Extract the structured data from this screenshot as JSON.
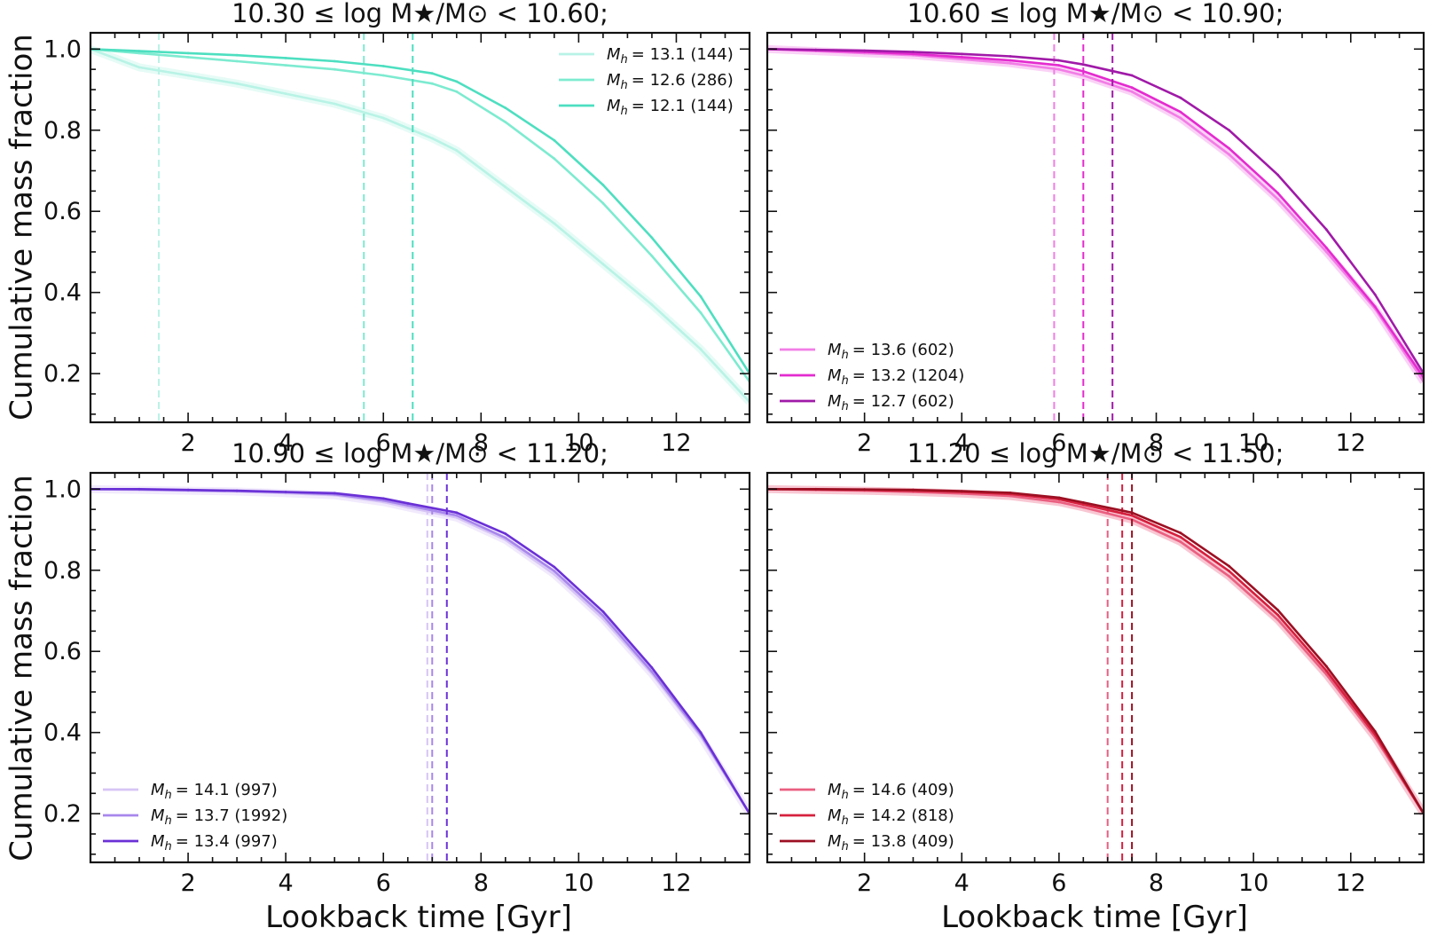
{
  "figure": {
    "ylabel": "Cumulative mass fraction",
    "xlabel": "Lookback time [Gyr]"
  },
  "chart_data": [
    {
      "type": "line",
      "title": "10.30 ≤ log M★/M⊙ < 10.60;",
      "xlabel": "Lookback time [Gyr]",
      "ylabel": "Cumulative mass fraction",
      "xlim": [
        0,
        13.5
      ],
      "ylim": [
        0.08,
        1.04
      ],
      "xticks": [
        "2",
        "4",
        "6",
        "8",
        "10",
        "12"
      ],
      "yticks": [
        "0.2",
        "0.4",
        "0.6",
        "0.8",
        "1.0"
      ],
      "legend": "top-right",
      "x": [
        0,
        1,
        2,
        3,
        4,
        5,
        6,
        7,
        7.5,
        8.5,
        9.5,
        10.5,
        11.5,
        12.5,
        13.5
      ],
      "series": [
        {
          "name": "M_h = 13.1 (144)",
          "label": "= 13.1 (144)",
          "color": "#b8f3e6",
          "values": [
            1.0,
            0.955,
            0.935,
            0.915,
            0.89,
            0.865,
            0.83,
            0.78,
            0.75,
            0.66,
            0.57,
            0.47,
            0.37,
            0.26,
            0.13
          ],
          "vline": 1.4
        },
        {
          "name": "M_h = 12.6 (286)",
          "label": "= 12.6 (286)",
          "color": "#7debd0",
          "values": [
            1.0,
            0.99,
            0.98,
            0.97,
            0.96,
            0.95,
            0.935,
            0.915,
            0.895,
            0.82,
            0.73,
            0.62,
            0.49,
            0.35,
            0.18
          ],
          "vline": 5.6
        },
        {
          "name": "M_h = 12.1 (144)",
          "label": "= 12.1 (144)",
          "color": "#4ddfc0",
          "values": [
            1.0,
            0.995,
            0.99,
            0.985,
            0.978,
            0.97,
            0.958,
            0.94,
            0.92,
            0.855,
            0.775,
            0.665,
            0.535,
            0.39,
            0.2
          ],
          "vline": 6.6
        }
      ]
    },
    {
      "type": "line",
      "title": "10.60 ≤ log M★/M⊙ < 10.90;",
      "xlabel": "Lookback time [Gyr]",
      "ylabel": "Cumulative mass fraction",
      "xlim": [
        0,
        13.5
      ],
      "ylim": [
        0.08,
        1.04
      ],
      "xticks": [
        "2",
        "4",
        "6",
        "8",
        "10",
        "12"
      ],
      "yticks": [
        "0.2",
        "0.4",
        "0.6",
        "0.8",
        "1.0"
      ],
      "legend": "bottom-left",
      "x": [
        0,
        1,
        2,
        3,
        4,
        5,
        6,
        6.5,
        7.5,
        8.5,
        9.5,
        10.5,
        11.5,
        12.5,
        13.5
      ],
      "series": [
        {
          "name": "M_h = 13.6 (602)",
          "label": "= 13.6 (602)",
          "color": "#f27de6",
          "values": [
            1.0,
            0.995,
            0.99,
            0.985,
            0.975,
            0.965,
            0.95,
            0.935,
            0.895,
            0.83,
            0.74,
            0.63,
            0.5,
            0.36,
            0.18
          ],
          "vline": 5.9
        },
        {
          "name": "M_h = 13.2 (1204)",
          "label": "= 13.2 (1204)",
          "color": "#e42bcf",
          "values": [
            1.0,
            0.997,
            0.993,
            0.988,
            0.98,
            0.972,
            0.96,
            0.945,
            0.905,
            0.845,
            0.755,
            0.645,
            0.51,
            0.365,
            0.19
          ],
          "vline": 6.5
        },
        {
          "name": "M_h = 12.7 (602)",
          "label": "= 12.7 (602)",
          "color": "#a01aa8",
          "values": [
            1.0,
            0.998,
            0.996,
            0.993,
            0.988,
            0.982,
            0.972,
            0.962,
            0.935,
            0.88,
            0.8,
            0.69,
            0.555,
            0.395,
            0.2
          ],
          "vline": 7.1
        }
      ]
    },
    {
      "type": "line",
      "title": "10.90 ≤ log M★/M⊙ < 11.20;",
      "xlabel": "Lookback time [Gyr]",
      "ylabel": "Cumulative mass fraction",
      "xlim": [
        0,
        13.5
      ],
      "ylim": [
        0.08,
        1.04
      ],
      "xticks": [
        "2",
        "4",
        "6",
        "8",
        "10",
        "12"
      ],
      "yticks": [
        "0.2",
        "0.4",
        "0.6",
        "0.8",
        "1.0"
      ],
      "legend": "bottom-left",
      "x": [
        0,
        1,
        2,
        3,
        4,
        5,
        6,
        6.5,
        7.5,
        8.5,
        9.5,
        10.5,
        11.5,
        12.5,
        13.5
      ],
      "series": [
        {
          "name": "M_h = 14.1 (997)",
          "label": "= 14.1 (997)",
          "color": "#d6c4f5",
          "values": [
            1.0,
            0.998,
            0.996,
            0.994,
            0.99,
            0.985,
            0.968,
            0.955,
            0.93,
            0.875,
            0.79,
            0.68,
            0.545,
            0.39,
            0.2
          ],
          "vline": 6.9
        },
        {
          "name": "M_h = 13.7 (1992)",
          "label": "= 13.7 (1992)",
          "color": "#a887ec",
          "values": [
            1.0,
            0.999,
            0.997,
            0.995,
            0.992,
            0.987,
            0.972,
            0.96,
            0.935,
            0.88,
            0.798,
            0.688,
            0.55,
            0.395,
            0.2
          ],
          "vline": 7.0
        },
        {
          "name": "M_h = 13.4 (997)",
          "label": "= 13.4 (997)",
          "color": "#6a30d6",
          "values": [
            1.0,
            1.0,
            0.998,
            0.996,
            0.993,
            0.99,
            0.977,
            0.965,
            0.942,
            0.89,
            0.808,
            0.698,
            0.56,
            0.4,
            0.2
          ],
          "vline": 7.3
        }
      ]
    },
    {
      "type": "line",
      "title": "11.20 ≤ log M★/M⊙ < 11.50;",
      "xlabel": "Lookback time [Gyr]",
      "ylabel": "Cumulative mass fraction",
      "xlim": [
        0,
        13.5
      ],
      "ylim": [
        0.08,
        1.04
      ],
      "xticks": [
        "2",
        "4",
        "6",
        "8",
        "10",
        "12"
      ],
      "yticks": [
        "0.2",
        "0.4",
        "0.6",
        "0.8",
        "1.0"
      ],
      "legend": "bottom-left",
      "x": [
        0,
        1,
        2,
        3,
        4,
        5,
        6,
        6.5,
        7.5,
        8.5,
        9.5,
        10.5,
        11.5,
        12.5,
        13.5
      ],
      "series": [
        {
          "name": "M_h = 14.6 (409)",
          "label": "= 14.6 (409)",
          "color": "#ea5f80",
          "values": [
            1.0,
            0.998,
            0.996,
            0.993,
            0.989,
            0.983,
            0.968,
            0.955,
            0.925,
            0.87,
            0.785,
            0.678,
            0.543,
            0.388,
            0.2
          ],
          "vline": 7.0
        },
        {
          "name": "M_h = 14.2 (818)",
          "label": "= 14.2 (818)",
          "color": "#d6203e",
          "values": [
            1.0,
            0.999,
            0.998,
            0.996,
            0.993,
            0.988,
            0.975,
            0.962,
            0.935,
            0.882,
            0.798,
            0.69,
            0.552,
            0.395,
            0.2
          ],
          "vline": 7.3
        },
        {
          "name": "M_h = 13.8 (409)",
          "label": "= 13.8 (409)",
          "color": "#9c0f22",
          "values": [
            1.0,
            1.0,
            0.999,
            0.998,
            0.995,
            0.991,
            0.979,
            0.967,
            0.942,
            0.892,
            0.81,
            0.702,
            0.563,
            0.403,
            0.2
          ],
          "vline": 7.5
        }
      ]
    }
  ]
}
